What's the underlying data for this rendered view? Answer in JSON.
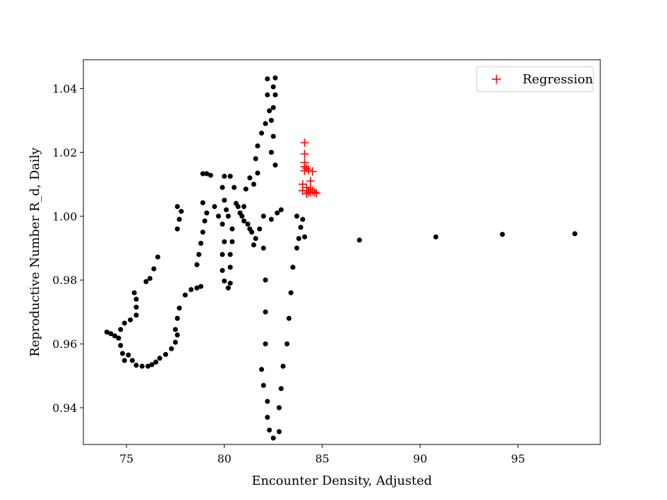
{
  "chart_data": {
    "type": "scatter",
    "title": "",
    "xlabel": "Encounter Density, Adjusted",
    "ylabel": "Reproductive Number R_d, Daily",
    "xlim": [
      72.8,
      99.2
    ],
    "ylim": [
      0.9285,
      1.049
    ],
    "xticks": [
      75,
      80,
      85,
      90,
      95
    ],
    "yticks": [
      0.94,
      0.96,
      0.98,
      1.0,
      1.02,
      1.04
    ],
    "xtick_labels": [
      "75",
      "80",
      "85",
      "90",
      "95"
    ],
    "ytick_labels": [
      "0.94",
      "0.96",
      "0.98",
      "1.00",
      "1.02",
      "1.04"
    ],
    "grid": false,
    "legend": {
      "position": "top-right",
      "entries": [
        "Regression"
      ]
    },
    "series": [
      {
        "marker": "circle",
        "color": "#000000",
        "points": [
          [
            74.0,
            0.9637
          ],
          [
            74.2,
            0.9632
          ],
          [
            74.4,
            0.9625
          ],
          [
            74.6,
            0.9618
          ],
          [
            74.7,
            0.9595
          ],
          [
            74.8,
            0.957
          ],
          [
            74.9,
            0.9548
          ],
          [
            75.1,
            0.9565
          ],
          [
            75.3,
            0.9548
          ],
          [
            75.5,
            0.9533
          ],
          [
            75.8,
            0.953
          ],
          [
            76.1,
            0.953
          ],
          [
            76.3,
            0.9535
          ],
          [
            76.5,
            0.9543
          ],
          [
            76.7,
            0.9555
          ],
          [
            77.0,
            0.9567
          ],
          [
            77.3,
            0.9585
          ],
          [
            77.5,
            0.9605
          ],
          [
            77.6,
            0.9628
          ],
          [
            77.5,
            0.9645
          ],
          [
            77.6,
            0.968
          ],
          [
            77.7,
            0.9712
          ],
          [
            78.0,
            0.9753
          ],
          [
            78.3,
            0.977
          ],
          [
            78.6,
            0.9775
          ],
          [
            78.8,
            0.978
          ],
          [
            78.6,
            0.9848
          ],
          [
            78.7,
            0.988
          ],
          [
            78.8,
            0.9915
          ],
          [
            78.9,
            0.995
          ],
          [
            79.0,
            0.9985
          ],
          [
            79.1,
            1.001
          ],
          [
            78.9,
            1.0042
          ],
          [
            78.9,
            1.0133
          ],
          [
            79.1,
            1.0133
          ],
          [
            79.3,
            1.0128
          ],
          [
            79.5,
            1.003
          ],
          [
            79.7,
            1.0
          ],
          [
            79.9,
            0.9975
          ],
          [
            80.0,
            0.992
          ],
          [
            79.9,
            0.988
          ],
          [
            79.9,
            0.983
          ],
          [
            80.0,
            0.9797
          ],
          [
            80.2,
            0.9775
          ],
          [
            80.3,
            0.979
          ],
          [
            80.3,
            0.984
          ],
          [
            80.3,
            0.988
          ],
          [
            80.4,
            0.992
          ],
          [
            80.4,
            0.996
          ],
          [
            80.2,
            1.0
          ],
          [
            80.0,
            1.005
          ],
          [
            79.9,
            1.009
          ],
          [
            80.0,
            1.0125
          ],
          [
            80.3,
            1.0125
          ],
          [
            80.5,
            1.009
          ],
          [
            80.7,
            1.003
          ],
          [
            80.9,
            1.0
          ],
          [
            81.1,
            1.0085
          ],
          [
            81.3,
            1.012
          ],
          [
            81.5,
            1.01
          ],
          [
            81.7,
            1.0135
          ],
          [
            81.6,
            1.018
          ],
          [
            81.7,
            1.022
          ],
          [
            81.9,
            1.026
          ],
          [
            82.1,
            1.029
          ],
          [
            82.3,
            1.033
          ],
          [
            82.2,
            1.038
          ],
          [
            82.2,
            1.043
          ],
          [
            82.5,
            1.0405
          ],
          [
            82.6,
            1.0433
          ],
          [
            82.6,
            1.038
          ],
          [
            82.5,
            1.034
          ],
          [
            82.4,
            1.03
          ],
          [
            82.5,
            1.025
          ],
          [
            82.4,
            1.02
          ],
          [
            82.6,
            1.016
          ],
          [
            82.9,
            1.002
          ],
          [
            82.7,
            1.001
          ],
          [
            82.4,
            0.999
          ],
          [
            82.0,
            1.0
          ],
          [
            81.8,
            0.996
          ],
          [
            82.0,
            0.99
          ],
          [
            82.1,
            0.98
          ],
          [
            82.1,
            0.97
          ],
          [
            82.1,
            0.96
          ],
          [
            81.9,
            0.952
          ],
          [
            82.0,
            0.947
          ],
          [
            82.2,
            0.942
          ],
          [
            82.2,
            0.937
          ],
          [
            82.3,
            0.933
          ],
          [
            82.5,
            0.9305
          ],
          [
            82.8,
            0.9325
          ],
          [
            82.8,
            0.94
          ],
          [
            82.9,
            0.946
          ],
          [
            83.0,
            0.953
          ],
          [
            83.2,
            0.96
          ],
          [
            83.3,
            0.968
          ],
          [
            83.4,
            0.976
          ],
          [
            83.5,
            0.984
          ],
          [
            83.7,
            0.99
          ],
          [
            83.8,
            0.993
          ],
          [
            83.9,
            0.9965
          ],
          [
            84.1,
            0.9935
          ],
          [
            83.7,
            1.0
          ],
          [
            84.0,
            0.999
          ],
          [
            81.0,
            0.9985
          ],
          [
            81.2,
            0.9975
          ],
          [
            81.4,
            0.995
          ],
          [
            81.6,
            0.993
          ],
          [
            81.5,
            0.991
          ],
          [
            81.3,
            0.996
          ],
          [
            81.0,
            1.003
          ],
          [
            80.8,
            1.001
          ],
          [
            80.6,
            1.004
          ],
          [
            80.1,
            1.002
          ],
          [
            75.4,
            0.976
          ],
          [
            75.5,
            0.974
          ],
          [
            75.5,
            0.9715
          ],
          [
            75.5,
            0.969
          ],
          [
            75.2,
            0.9675
          ],
          [
            74.9,
            0.9665
          ],
          [
            74.7,
            0.9645
          ],
          [
            76.0,
            0.9795
          ],
          [
            76.2,
            0.9805
          ],
          [
            76.4,
            0.9835
          ],
          [
            76.6,
            0.9872
          ],
          [
            77.6,
            0.996
          ],
          [
            77.7,
            0.999
          ],
          [
            77.8,
            1.0015
          ],
          [
            77.6,
            1.003
          ],
          [
            86.9,
            0.9925
          ],
          [
            90.8,
            0.9935
          ],
          [
            94.2,
            0.9943
          ],
          [
            97.9,
            0.9945
          ]
        ]
      },
      {
        "name": "Regression",
        "marker": "plus",
        "color": "#ff0000",
        "points": [
          [
            84.1,
            1.023
          ],
          [
            84.1,
            1.0195
          ],
          [
            84.1,
            1.0168
          ],
          [
            84.1,
            1.0155
          ],
          [
            84.1,
            1.0142
          ],
          [
            84.2,
            1.015
          ],
          [
            84.3,
            1.0145
          ],
          [
            84.5,
            1.014
          ],
          [
            84.0,
            1.01
          ],
          [
            84.0,
            1.008
          ],
          [
            84.2,
            1.009
          ],
          [
            84.3,
            1.008
          ],
          [
            84.4,
            1.0075
          ],
          [
            84.5,
            1.008
          ],
          [
            84.6,
            1.0075
          ],
          [
            84.7,
            1.0072
          ],
          [
            84.2,
            1.007
          ],
          [
            84.3,
            1.0075
          ],
          [
            84.4,
            1.0085
          ],
          [
            84.4,
            1.011
          ]
        ]
      }
    ]
  }
}
